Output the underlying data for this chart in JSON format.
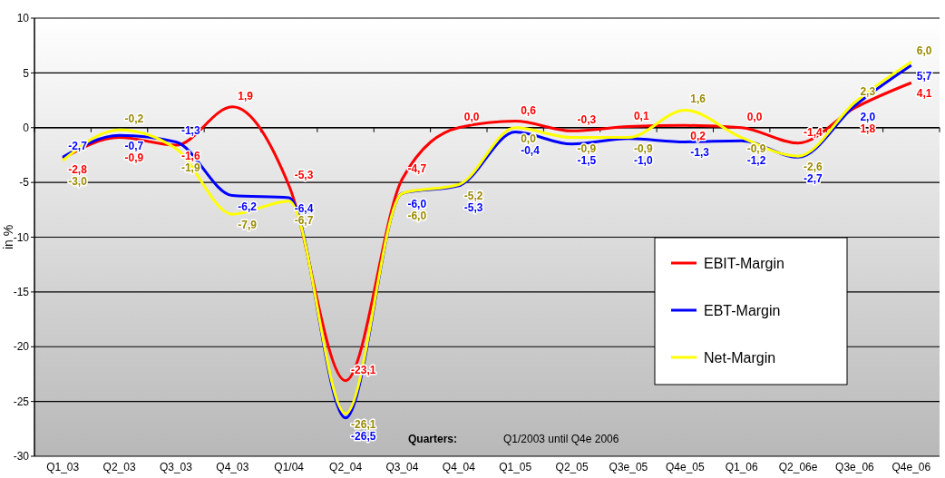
{
  "chart_data": {
    "type": "line",
    "xlabel": "Quarters:",
    "ylabel": "in %",
    "annotations": [
      "Q1/2003 until Q4e 2006"
    ],
    "categories": [
      "Q1_03",
      "Q2_03",
      "Q3_03",
      "Q4_03",
      "Q1/04",
      "Q2_04",
      "Q3_04",
      "Q4_04",
      "Q1_05",
      "Q2_05",
      "Q3e_05",
      "Q4e_05",
      "Q1_06",
      "Q2_06e",
      "Q3e_06",
      "Q4e_06"
    ],
    "series": [
      {
        "name": "EBIT-Margin",
        "color": "#ff0000",
        "values": [
          -2.8,
          -0.9,
          -1.6,
          1.9,
          -5.3,
          -23.1,
          -4.7,
          0.0,
          0.6,
          -0.3,
          0.1,
          0.2,
          0.0,
          -1.4,
          1.8,
          4.1
        ],
        "value_labels": [
          "-2,8",
          "-0,9",
          "-1,6",
          "1,9",
          "-5,3",
          "-23,1",
          "-4,7",
          "0,0",
          "0,6",
          "-0,3",
          "0,1",
          "0,2",
          "0,0",
          "-1,4",
          "1,8",
          "4,1"
        ]
      },
      {
        "name": "EBT-Margin",
        "color": "#0000ff",
        "values": [
          -2.7,
          -0.7,
          -1.3,
          -6.2,
          -6.4,
          -26.5,
          -6.0,
          -5.3,
          -0.4,
          -1.5,
          -1.0,
          -1.3,
          -1.2,
          -2.7,
          2.0,
          5.7
        ],
        "value_labels": [
          "-2,7",
          "-0,7",
          "-1,3",
          "-6,2",
          "-6,4",
          "-26,5",
          "-6,0",
          "-5,3",
          "-0,4",
          "-1,5",
          "-1,0",
          "-1,3",
          "-1,2",
          "-2,7",
          "2,0",
          "5,7"
        ]
      },
      {
        "name": "Net-Margin",
        "color": "#ffff00",
        "values": [
          -3.0,
          -0.2,
          -1.9,
          -7.9,
          -6.7,
          -26.1,
          -6.0,
          -5.2,
          0.0,
          -0.9,
          -0.9,
          1.6,
          -0.9,
          -2.6,
          2.3,
          6.0
        ],
        "value_labels": [
          "-3,0",
          "-0,2",
          "-1,9",
          "-7,9",
          "-6,7",
          "-26,1",
          "-6,0",
          "-5,2",
          "0,0",
          "-0,9",
          "-0,9",
          "1,6",
          "-0,9",
          "-2,6",
          "2,3",
          "6,0"
        ]
      }
    ],
    "ylim": [
      -30,
      10
    ],
    "yticks": [
      -30,
      -25,
      -20,
      -15,
      -10,
      -5,
      0,
      5,
      10
    ],
    "grid": "y",
    "legend": "right",
    "marker": "none",
    "line_style": "solid"
  }
}
